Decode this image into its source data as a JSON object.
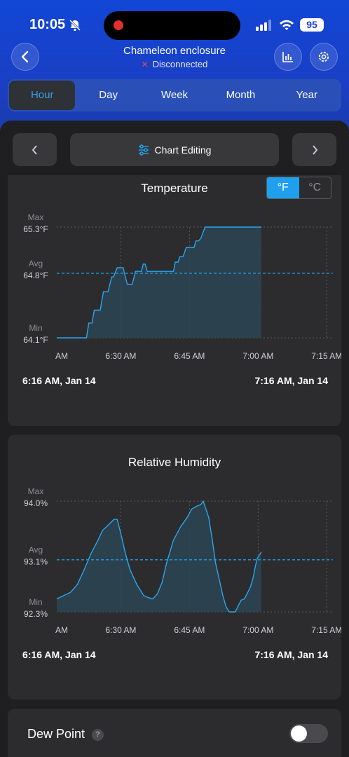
{
  "status": {
    "time": "10:05",
    "battery": "95"
  },
  "header": {
    "title": "Chameleon enclosure",
    "connection": "Disconnected"
  },
  "tabs": [
    {
      "label": "Hour",
      "active": true
    },
    {
      "label": "Day"
    },
    {
      "label": "Week"
    },
    {
      "label": "Month"
    },
    {
      "label": "Year"
    }
  ],
  "toolbar": {
    "edit_label": "Chart Editing"
  },
  "colors": {
    "accent": "#1ea0ee",
    "line": "#2aa5f0",
    "fill": "#2b4552"
  },
  "temperature": {
    "title": "Temperature",
    "units": {
      "f": "°F",
      "c": "°C",
      "selected": "F"
    },
    "range_start": "6:16 AM,  Jan 14",
    "range_end": "7:16 AM,  Jan 14"
  },
  "humidity": {
    "title": "Relative Humidity",
    "range_start": "6:16 AM,  Jan 14",
    "range_end": "7:16 AM,  Jan 14"
  },
  "dew_point": {
    "label": "Dew Point",
    "help": "?",
    "enabled": false
  },
  "chart_data": [
    {
      "type": "area",
      "title": "Temperature",
      "x_ticks": [
        "AM",
        "6:30 AM",
        "6:45 AM",
        "7:00 AM",
        "7:15 AM"
      ],
      "x_tick_minutes": [
        16,
        30,
        45,
        60,
        75
      ],
      "ref_lines": [
        {
          "label": "Max",
          "value_text": "65.3°F",
          "value": 65.3
        },
        {
          "label": "Avg",
          "value_text": "64.8°F",
          "value": 64.8
        },
        {
          "label": "Min",
          "value_text": "64.1°F",
          "value": 64.1
        }
      ],
      "ylim": [
        64.1,
        65.3
      ],
      "series": [
        {
          "x": [
            16,
            22.5,
            23,
            23.7,
            24.2,
            25.5,
            26.2,
            27.2,
            28,
            28.4,
            29.2,
            29.6,
            30.5,
            31.4,
            32.5,
            33.2,
            34,
            34.5,
            34.9,
            35.3,
            35.8,
            36.4,
            38,
            40,
            41.5,
            41.9,
            42.5,
            42.9,
            43.6,
            44.3,
            46,
            46.4,
            47,
            47.5,
            48.4,
            50.2,
            60.7
          ],
          "y": [
            64.1,
            64.1,
            64.26,
            64.26,
            64.4,
            64.4,
            64.6,
            64.6,
            64.76,
            64.76,
            64.86,
            64.86,
            64.86,
            64.68,
            64.68,
            64.82,
            64.82,
            64.82,
            64.9,
            64.9,
            64.82,
            64.82,
            64.82,
            64.82,
            64.82,
            64.92,
            64.92,
            64.98,
            64.98,
            65.08,
            65.08,
            65.15,
            65.15,
            65.18,
            65.3,
            65.3,
            65.3
          ]
        }
      ]
    },
    {
      "type": "area",
      "title": "Relative Humidity",
      "x_ticks": [
        "AM",
        "6:30 AM",
        "6:45 AM",
        "7:00 AM",
        "7:15 AM"
      ],
      "x_tick_minutes": [
        16,
        30,
        45,
        60,
        75
      ],
      "ref_lines": [
        {
          "label": "Max",
          "value_text": "94.0%",
          "value": 94.0
        },
        {
          "label": "Avg",
          "value_text": "93.1%",
          "value": 93.1
        },
        {
          "label": "Min",
          "value_text": "92.3%",
          "value": 92.3
        }
      ],
      "ylim": [
        92.3,
        94.0
      ],
      "series": [
        {
          "x": [
            16,
            17.5,
            19,
            20.5,
            22,
            23.5,
            25,
            26,
            27.5,
            28.5,
            29.2,
            30,
            31,
            32,
            33.5,
            35,
            36,
            37,
            38,
            39,
            40,
            41.5,
            43,
            44.5,
            45.5,
            46.5,
            47.5,
            48,
            48.5,
            49.2,
            50,
            50.7,
            51.5,
            52.3,
            53,
            53.7,
            54.3,
            55,
            55.7,
            56.3,
            57,
            57.6,
            58.3,
            58.9,
            59.4,
            59.8,
            60.7
          ],
          "y": [
            92.5,
            92.55,
            92.6,
            92.72,
            92.95,
            93.2,
            93.4,
            93.55,
            93.65,
            93.72,
            93.72,
            93.5,
            93.2,
            92.95,
            92.72,
            92.55,
            92.52,
            92.5,
            92.58,
            92.75,
            93.05,
            93.4,
            93.6,
            93.75,
            93.88,
            93.92,
            93.95,
            94.0,
            93.9,
            93.75,
            93.4,
            93.05,
            92.8,
            92.55,
            92.38,
            92.3,
            92.3,
            92.3,
            92.4,
            92.48,
            92.5,
            92.58,
            92.68,
            92.82,
            93.0,
            93.12,
            93.22
          ]
        }
      ]
    }
  ]
}
